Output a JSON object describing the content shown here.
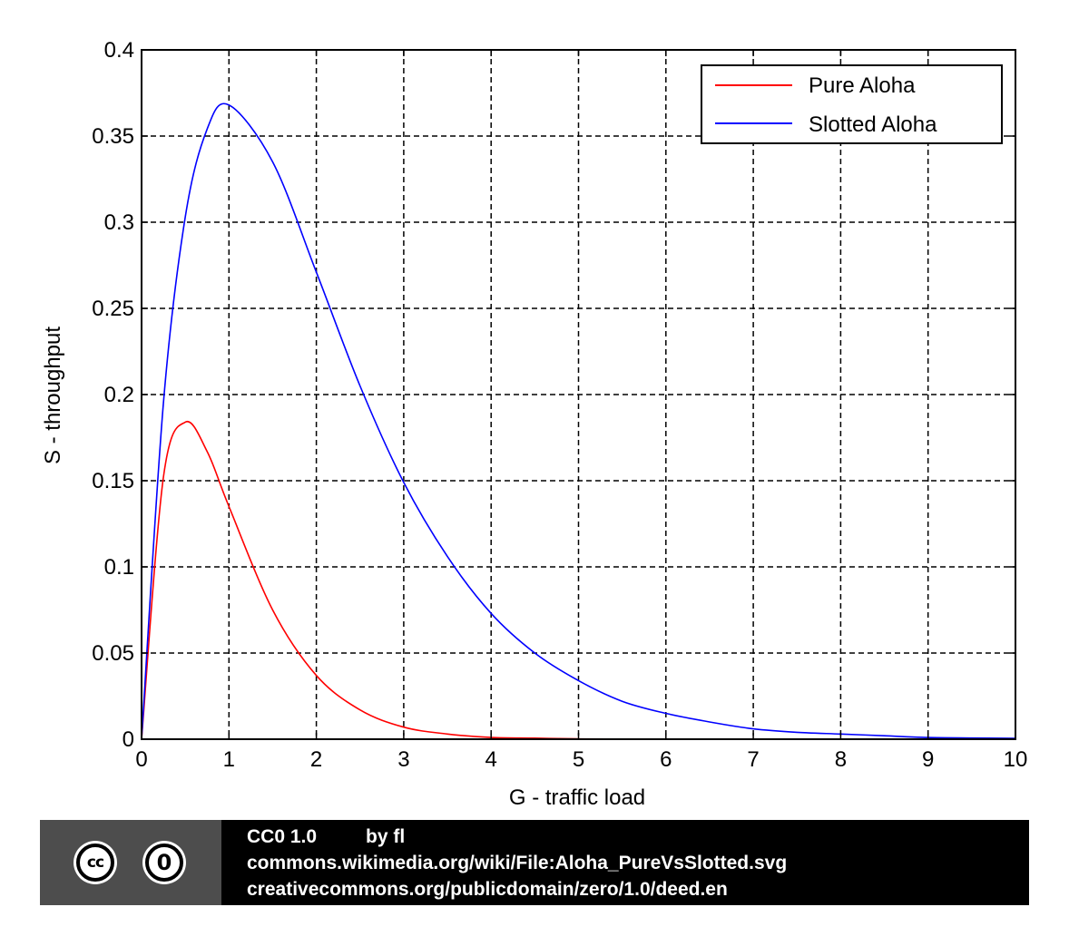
{
  "chart_data": {
    "type": "line",
    "title": "",
    "xlabel": "G - traffic load",
    "ylabel": "S - throughput",
    "xlim": [
      0,
      10
    ],
    "ylim": [
      0,
      0.4
    ],
    "grid": true,
    "xticks": [
      "0",
      "1",
      "2",
      "3",
      "4",
      "5",
      "6",
      "7",
      "8",
      "9",
      "10"
    ],
    "yticks": [
      "0",
      "0.05",
      "0.1",
      "0.15",
      "0.2",
      "0.25",
      "0.3",
      "0.35",
      "0.4"
    ],
    "legend_position": "top-right",
    "x": [
      0,
      0.25,
      0.5,
      0.75,
      1,
      1.5,
      2,
      2.5,
      3,
      3.5,
      4,
      4.5,
      5,
      5.5,
      6,
      6.5,
      7,
      7.5,
      8,
      8.5,
      9,
      9.5,
      10
    ],
    "series": [
      {
        "name": "Pure Aloha",
        "color": "#ff0000",
        "values": [
          0,
          0.152,
          0.184,
          0.167,
          0.135,
          0.075,
          0.037,
          0.017,
          0.007,
          0.003,
          0.001,
          0.0006,
          0.0002,
          0.0001,
          4e-05,
          1e-05,
          0,
          0,
          0,
          0,
          0,
          0,
          0
        ]
      },
      {
        "name": "Slotted Aloha",
        "color": "#0000ff",
        "values": [
          0,
          0.195,
          0.303,
          0.354,
          0.368,
          0.335,
          0.271,
          0.205,
          0.149,
          0.106,
          0.073,
          0.05,
          0.034,
          0.022,
          0.015,
          0.01,
          0.006,
          0.004,
          0.003,
          0.002,
          0.001,
          0.0007,
          0.0005
        ]
      }
    ]
  },
  "license": {
    "logo_cc": "cc",
    "logo_zero": "0",
    "name": "CC0 1.0",
    "author": "by fl",
    "source_url": "commons.wikimedia.org/wiki/File:Aloha_PureVsSlotted.svg",
    "license_url": "creativecommons.org/publicdomain/zero/1.0/deed.en"
  }
}
